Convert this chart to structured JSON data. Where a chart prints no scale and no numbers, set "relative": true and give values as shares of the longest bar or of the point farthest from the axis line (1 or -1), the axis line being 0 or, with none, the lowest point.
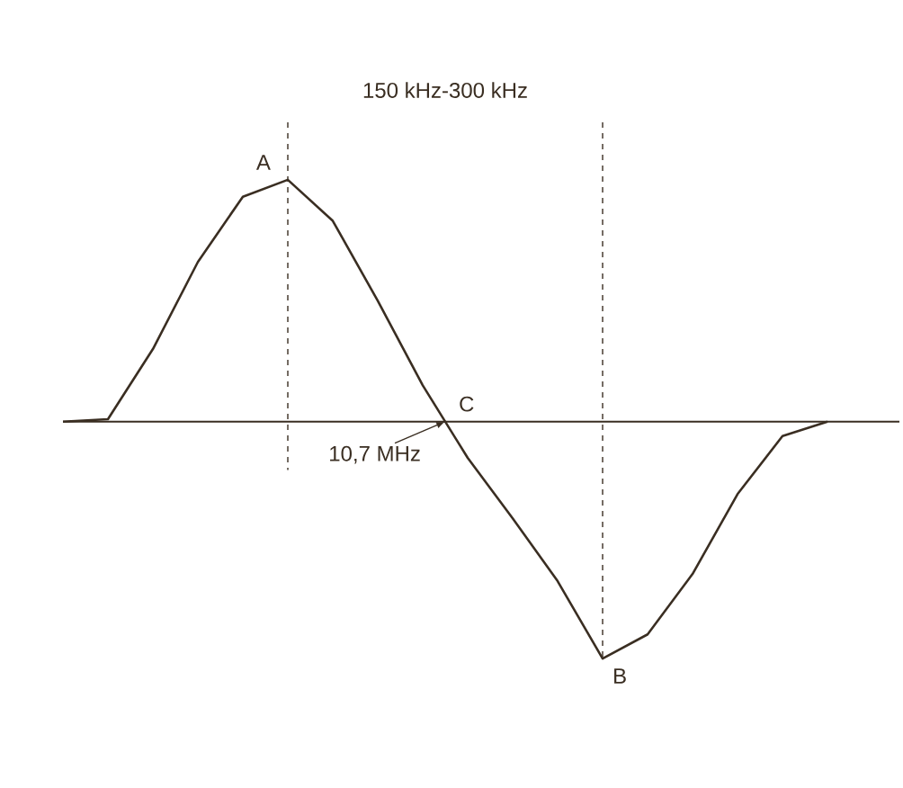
{
  "chart_data": {
    "type": "line",
    "relative": true,
    "color": "#3a2e22",
    "tick_labels": false,
    "marker": "none",
    "line_style": "solid",
    "categories": [
      null,
      null,
      null,
      null,
      null,
      null,
      null,
      null,
      null,
      null,
      null,
      null,
      null,
      null,
      null,
      null,
      null,
      null
    ],
    "values": [
      0,
      0.01,
      0.3,
      0.66,
      0.93,
      1,
      0.83,
      0.5,
      0.15,
      -0.15,
      -0.4,
      -0.66,
      -0.98,
      -0.88,
      -0.63,
      -0.3,
      -0.06,
      0
    ],
    "annotations": [
      "150 kHz-300 kHz",
      "A",
      "B",
      "C",
      "10,7 MHz"
    ]
  }
}
